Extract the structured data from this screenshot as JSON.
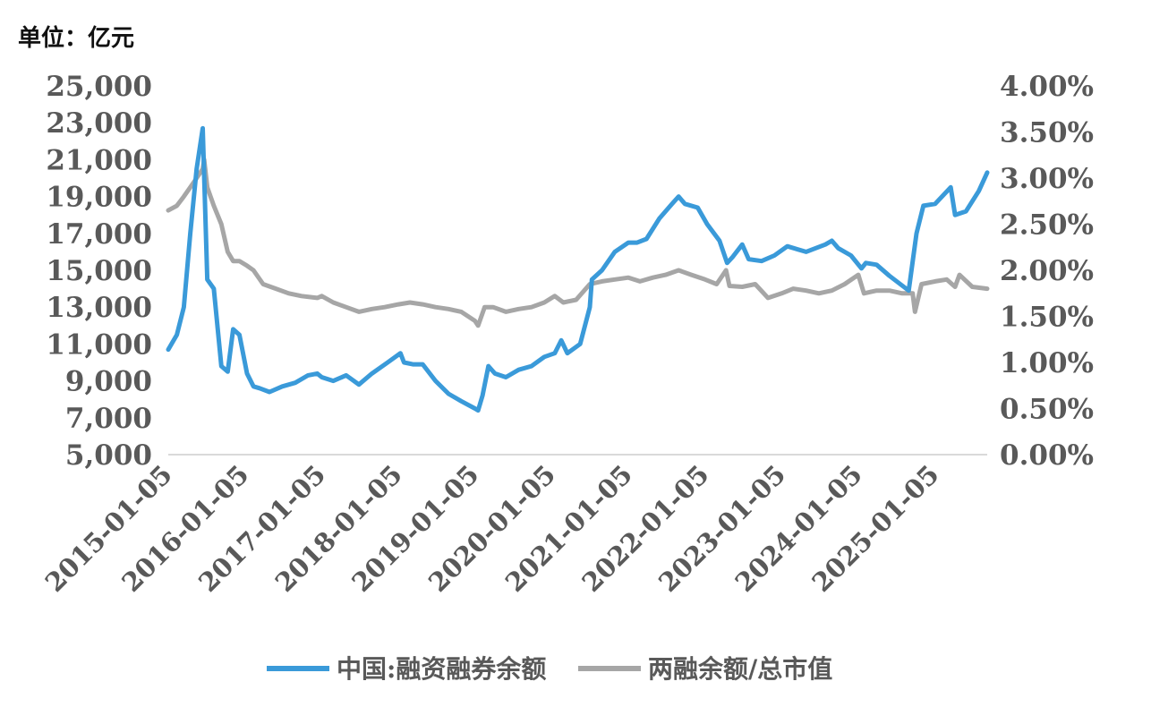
{
  "unit_label": "单位：亿元",
  "colors": {
    "series_blue": "#3a9ad9",
    "series_gray": "#a6a6a6",
    "axis_line": "#d9d9d9",
    "tick_text": "#595959"
  },
  "chart_data": {
    "type": "line",
    "title": "",
    "xlabel": "",
    "ylabel": "单位：亿元",
    "grid": false,
    "legend_position": "bottom",
    "x_tick_labels": [
      "2015-01-05",
      "2016-01-05",
      "2017-01-05",
      "2018-01-05",
      "2019-01-05",
      "2020-01-05",
      "2021-01-05",
      "2022-01-05",
      "2023-01-05",
      "2024-01-05",
      "2025-01-05"
    ],
    "y_left": {
      "ylim": [
        5000,
        25000
      ],
      "tick_labels": [
        "5,000",
        "7,000",
        "9,000",
        "11,000",
        "13,000",
        "15,000",
        "17,000",
        "19,000",
        "21,000",
        "23,000",
        "25,000"
      ]
    },
    "y_right": {
      "ylim": [
        0,
        0.04
      ],
      "tick_labels": [
        "0.00%",
        "0.50%",
        "1.00%",
        "1.50%",
        "2.00%",
        "2.50%",
        "3.00%",
        "3.50%",
        "4.00%"
      ]
    },
    "series": [
      {
        "name": "中国:融资融券余额",
        "axis": "left",
        "points": [
          [
            "2015-01-05",
            10700
          ],
          [
            "2015-02-15",
            11500
          ],
          [
            "2015-03-20",
            13000
          ],
          [
            "2015-04-20",
            17000
          ],
          [
            "2015-05-20",
            20500
          ],
          [
            "2015-06-18",
            22700
          ],
          [
            "2015-07-10",
            14500
          ],
          [
            "2015-08-10",
            14000
          ],
          [
            "2015-09-15",
            9800
          ],
          [
            "2015-10-15",
            9500
          ],
          [
            "2015-11-10",
            11800
          ],
          [
            "2015-12-10",
            11500
          ],
          [
            "2016-01-15",
            9400
          ],
          [
            "2016-02-15",
            8700
          ],
          [
            "2016-03-15",
            8600
          ],
          [
            "2016-05-01",
            8400
          ],
          [
            "2016-07-01",
            8700
          ],
          [
            "2016-09-01",
            8900
          ],
          [
            "2016-11-01",
            9300
          ],
          [
            "2016-12-15",
            9400
          ],
          [
            "2017-01-05",
            9200
          ],
          [
            "2017-03-01",
            9000
          ],
          [
            "2017-05-01",
            9300
          ],
          [
            "2017-07-01",
            8800
          ],
          [
            "2017-09-01",
            9400
          ],
          [
            "2017-11-15",
            10000
          ],
          [
            "2018-01-15",
            10500
          ],
          [
            "2018-02-01",
            10000
          ],
          [
            "2018-03-15",
            9900
          ],
          [
            "2018-05-01",
            9900
          ],
          [
            "2018-07-01",
            9000
          ],
          [
            "2018-09-01",
            8300
          ],
          [
            "2018-11-01",
            7900
          ],
          [
            "2019-01-05",
            7500
          ],
          [
            "2019-01-20",
            7400
          ],
          [
            "2019-02-10",
            8200
          ],
          [
            "2019-03-10",
            9800
          ],
          [
            "2019-04-10",
            9400
          ],
          [
            "2019-06-01",
            9200
          ],
          [
            "2019-08-01",
            9600
          ],
          [
            "2019-10-01",
            9800
          ],
          [
            "2019-12-01",
            10300
          ],
          [
            "2020-01-20",
            10500
          ],
          [
            "2020-02-20",
            11200
          ],
          [
            "2020-03-20",
            10500
          ],
          [
            "2020-05-20",
            11000
          ],
          [
            "2020-07-05",
            13000
          ],
          [
            "2020-07-15",
            14500
          ],
          [
            "2020-09-01",
            15000
          ],
          [
            "2020-11-01",
            16000
          ],
          [
            "2021-01-05",
            16500
          ],
          [
            "2021-02-15",
            16500
          ],
          [
            "2021-04-01",
            16700
          ],
          [
            "2021-06-01",
            17800
          ],
          [
            "2021-08-01",
            18600
          ],
          [
            "2021-09-01",
            19000
          ],
          [
            "2021-10-01",
            18600
          ],
          [
            "2021-12-01",
            18400
          ],
          [
            "2022-01-15",
            17500
          ],
          [
            "2022-03-15",
            16600
          ],
          [
            "2022-04-20",
            15400
          ],
          [
            "2022-05-15",
            15700
          ],
          [
            "2022-07-01",
            16400
          ],
          [
            "2022-08-01",
            15600
          ],
          [
            "2022-10-01",
            15500
          ],
          [
            "2022-12-01",
            15800
          ],
          [
            "2023-02-01",
            16300
          ],
          [
            "2023-05-01",
            16000
          ],
          [
            "2023-08-01",
            16400
          ],
          [
            "2023-09-01",
            16600
          ],
          [
            "2023-10-01",
            16200
          ],
          [
            "2023-12-01",
            15800
          ],
          [
            "2024-01-20",
            15100
          ],
          [
            "2024-02-10",
            15400
          ],
          [
            "2024-04-01",
            15300
          ],
          [
            "2024-06-01",
            14700
          ],
          [
            "2024-09-01",
            13900
          ],
          [
            "2024-10-08",
            17000
          ],
          [
            "2024-11-10",
            18500
          ],
          [
            "2025-01-05",
            18600
          ],
          [
            "2025-03-20",
            19500
          ],
          [
            "2025-04-10",
            18000
          ],
          [
            "2025-06-01",
            18200
          ],
          [
            "2025-08-01",
            19300
          ],
          [
            "2025-09-10",
            20300
          ]
        ]
      },
      {
        "name": "两融余额/总市值",
        "axis": "right",
        "points": [
          [
            "2015-01-05",
            0.0265
          ],
          [
            "2015-02-15",
            0.027
          ],
          [
            "2015-03-20",
            0.028
          ],
          [
            "2015-04-20",
            0.029
          ],
          [
            "2015-05-20",
            0.03
          ],
          [
            "2015-06-18",
            0.031
          ],
          [
            "2015-06-25",
            0.032
          ],
          [
            "2015-07-10",
            0.029
          ],
          [
            "2015-08-10",
            0.027
          ],
          [
            "2015-09-15",
            0.025
          ],
          [
            "2015-10-15",
            0.022
          ],
          [
            "2015-11-10",
            0.021
          ],
          [
            "2015-12-10",
            0.021
          ],
          [
            "2016-01-15",
            0.0205
          ],
          [
            "2016-02-15",
            0.02
          ],
          [
            "2016-04-01",
            0.0185
          ],
          [
            "2016-06-01",
            0.018
          ],
          [
            "2016-08-01",
            0.0175
          ],
          [
            "2016-10-01",
            0.0172
          ],
          [
            "2016-12-15",
            0.017
          ],
          [
            "2017-01-05",
            0.0172
          ],
          [
            "2017-03-01",
            0.0165
          ],
          [
            "2017-05-01",
            0.016
          ],
          [
            "2017-07-01",
            0.0155
          ],
          [
            "2017-09-01",
            0.0158
          ],
          [
            "2017-11-01",
            0.016
          ],
          [
            "2018-01-05",
            0.0163
          ],
          [
            "2018-03-01",
            0.0165
          ],
          [
            "2018-05-01",
            0.0163
          ],
          [
            "2018-07-01",
            0.016
          ],
          [
            "2018-09-01",
            0.0158
          ],
          [
            "2018-11-01",
            0.0155
          ],
          [
            "2019-01-05",
            0.0145
          ],
          [
            "2019-01-20",
            0.014
          ],
          [
            "2019-02-20",
            0.016
          ],
          [
            "2019-04-01",
            0.016
          ],
          [
            "2019-06-01",
            0.0155
          ],
          [
            "2019-08-01",
            0.0158
          ],
          [
            "2019-10-01",
            0.016
          ],
          [
            "2019-12-01",
            0.0165
          ],
          [
            "2020-01-20",
            0.0172
          ],
          [
            "2020-03-01",
            0.0165
          ],
          [
            "2020-05-01",
            0.0168
          ],
          [
            "2020-07-05",
            0.0185
          ],
          [
            "2020-09-01",
            0.0188
          ],
          [
            "2020-11-01",
            0.019
          ],
          [
            "2021-01-05",
            0.0192
          ],
          [
            "2021-03-01",
            0.0188
          ],
          [
            "2021-05-01",
            0.0192
          ],
          [
            "2021-07-01",
            0.0195
          ],
          [
            "2021-09-01",
            0.02
          ],
          [
            "2021-11-01",
            0.0195
          ],
          [
            "2022-01-05",
            0.019
          ],
          [
            "2022-03-01",
            0.0185
          ],
          [
            "2022-04-15",
            0.02
          ],
          [
            "2022-05-01",
            0.0183
          ],
          [
            "2022-07-01",
            0.0182
          ],
          [
            "2022-09-01",
            0.0185
          ],
          [
            "2022-11-01",
            0.017
          ],
          [
            "2023-01-05",
            0.0175
          ],
          [
            "2023-03-01",
            0.018
          ],
          [
            "2023-05-01",
            0.0178
          ],
          [
            "2023-07-01",
            0.0175
          ],
          [
            "2023-09-01",
            0.0178
          ],
          [
            "2023-11-01",
            0.0185
          ],
          [
            "2024-01-05",
            0.0195
          ],
          [
            "2024-02-01",
            0.0175
          ],
          [
            "2024-04-01",
            0.0178
          ],
          [
            "2024-06-01",
            0.0178
          ],
          [
            "2024-08-01",
            0.0175
          ],
          [
            "2024-09-20",
            0.0175
          ],
          [
            "2024-10-01",
            0.0155
          ],
          [
            "2024-11-01",
            0.0185
          ],
          [
            "2025-01-05",
            0.0188
          ],
          [
            "2025-03-01",
            0.019
          ],
          [
            "2025-04-10",
            0.0182
          ],
          [
            "2025-05-01",
            0.0195
          ],
          [
            "2025-07-01",
            0.0182
          ],
          [
            "2025-09-10",
            0.018
          ]
        ]
      }
    ]
  }
}
